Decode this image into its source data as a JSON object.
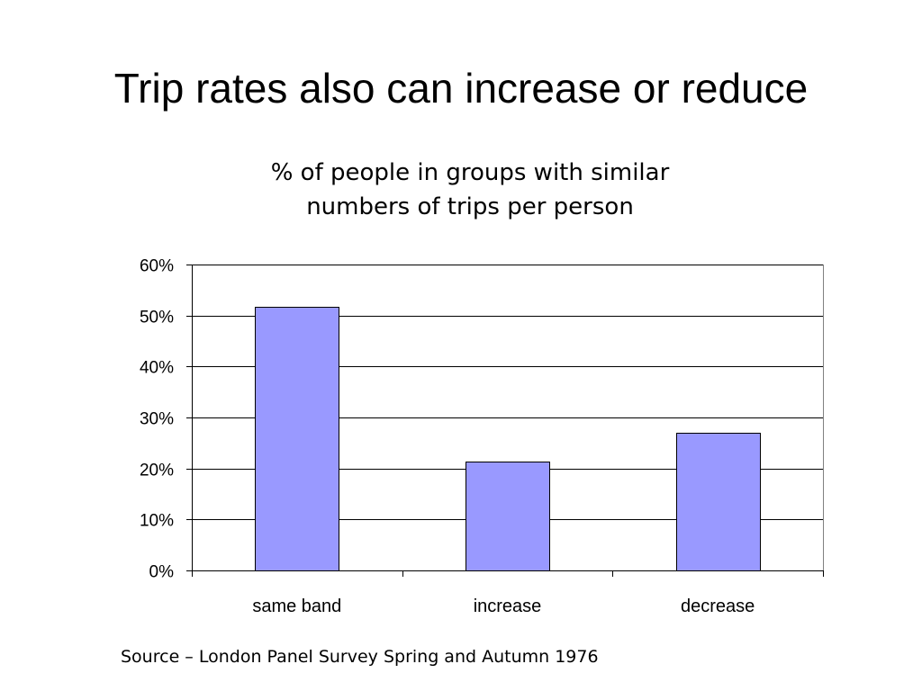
{
  "slide": {
    "title": "Trip rates also can increase or reduce",
    "source": "Source – London Panel Survey Spring and Autumn 1976"
  },
  "chart_data": {
    "type": "bar",
    "title_lines": [
      "% of people in groups with similar",
      "numbers of trips per person"
    ],
    "categories": [
      "same band",
      "increase",
      "decrease"
    ],
    "values": [
      51.7,
      21.3,
      27.0
    ],
    "ylim": [
      0,
      60
    ],
    "yticks": [
      0,
      10,
      20,
      30,
      40,
      50,
      60
    ],
    "ytick_labels": [
      "0%",
      "10%",
      "20%",
      "30%",
      "40%",
      "50%",
      "60%"
    ],
    "grid": true,
    "bar_color": "#9999ff",
    "bar_edge_color": "#000000",
    "grid_color": "#000000"
  }
}
